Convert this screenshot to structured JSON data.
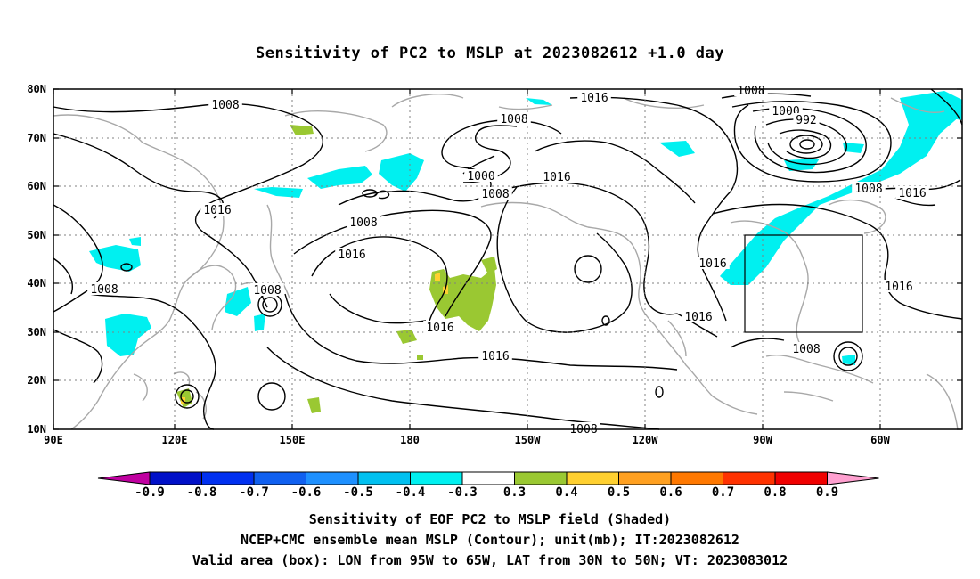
{
  "title": "Sensitivity of PC2 to MSLP at 2023082612 +1.0 day",
  "map": {
    "lon_ticks": [
      "90E",
      "120E",
      "150E",
      "180",
      "150W",
      "120W",
      "90W",
      "60W"
    ],
    "lat_ticks": [
      "80N",
      "70N",
      "60N",
      "50N",
      "40N",
      "30N",
      "20N",
      "10N"
    ],
    "valid_box_label": "Valid area (box)",
    "contour_labels": [
      "1008",
      "1008",
      "1016",
      "1008",
      "1008",
      "1016",
      "1008",
      "1000",
      "1008",
      "1016",
      "1016",
      "1016",
      "1008",
      "1000",
      "992",
      "1008",
      "1016",
      "1016",
      "1016",
      "1016",
      "1016",
      "1008",
      "1008"
    ]
  },
  "colorbar": {
    "labels": [
      "-0.9",
      "-0.8",
      "-0.7",
      "-0.6",
      "-0.5",
      "-0.4",
      "-0.3",
      "0.3",
      "0.4",
      "0.5",
      "0.6",
      "0.7",
      "0.8",
      "0.9"
    ],
    "colors": [
      "#c000a0",
      "#0010c8",
      "#0030f0",
      "#1060f0",
      "#1e90ff",
      "#00c0f0",
      "#00f0f0",
      "#ffffff",
      "#9ac832",
      "#ffd030",
      "#ffa020",
      "#ff7800",
      "#ff3200",
      "#f00000",
      "#ffa0d0"
    ]
  },
  "captions": [
    "Sensitivity of EOF PC2 to MSLP field (Shaded)",
    "NCEP+CMC ensemble mean MSLP (Contour); unit(mb); IT:2023082612",
    "Valid area (box): LON from 95W to 65W, LAT from 30N to 50N; VT: 2023083012"
  ]
}
